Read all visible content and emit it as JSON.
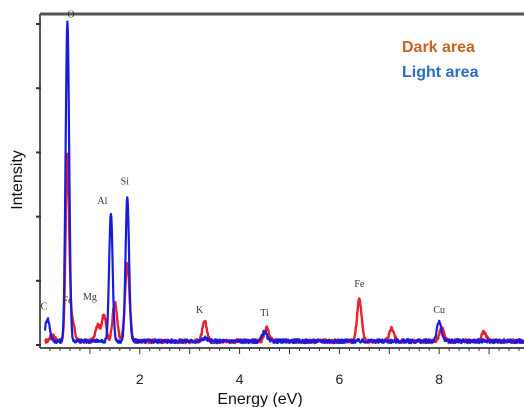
{
  "chart_data": {
    "type": "line",
    "title": "",
    "xlabel": "Energy (eV)",
    "ylabel": "Intensity",
    "xlim": [
      0,
      9.7
    ],
    "ylim": [
      0,
      100
    ],
    "x_ticks": [
      2,
      4,
      6,
      8
    ],
    "grid": false,
    "legend_position": "top-right",
    "series": [
      {
        "name": "Dark area",
        "color": "#e8222a",
        "legend_color": "#c8641e",
        "peaks": [
          {
            "x": 0.25,
            "y": 2
          },
          {
            "x": 0.55,
            "y": 58
          },
          {
            "x": 0.65,
            "y": 6
          },
          {
            "x": 1.15,
            "y": 5
          },
          {
            "x": 1.28,
            "y": 8
          },
          {
            "x": 1.5,
            "y": 12
          },
          {
            "x": 1.75,
            "y": 24
          },
          {
            "x": 3.3,
            "y": 6
          },
          {
            "x": 4.55,
            "y": 4
          },
          {
            "x": 6.4,
            "y": 13
          },
          {
            "x": 7.05,
            "y": 4
          },
          {
            "x": 8.05,
            "y": 4
          },
          {
            "x": 8.9,
            "y": 3
          }
        ]
      },
      {
        "name": "Light area",
        "color": "#1a1adc",
        "legend_color": "#2b6cc4",
        "peaks": [
          {
            "x": 0.15,
            "y": 7
          },
          {
            "x": 0.55,
            "y": 100
          },
          {
            "x": 1.42,
            "y": 40
          },
          {
            "x": 1.75,
            "y": 45
          },
          {
            "x": 3.3,
            "y": 1
          },
          {
            "x": 4.5,
            "y": 3
          },
          {
            "x": 8.0,
            "y": 6
          }
        ]
      }
    ],
    "annotations": [
      {
        "label": "O",
        "x": 0.62,
        "y": 102
      },
      {
        "label": "C",
        "x": 0.08,
        "y": 11
      },
      {
        "label": "Fe",
        "x": 0.55,
        "y": 13
      },
      {
        "label": "Mg",
        "x": 1.0,
        "y": 14
      },
      {
        "label": "Al",
        "x": 1.25,
        "y": 44
      },
      {
        "label": "Si",
        "x": 1.7,
        "y": 50
      },
      {
        "label": "K",
        "x": 3.2,
        "y": 10
      },
      {
        "label": "Ti",
        "x": 4.5,
        "y": 9
      },
      {
        "label": "Fe",
        "x": 6.4,
        "y": 18
      },
      {
        "label": "Cu",
        "x": 8.0,
        "y": 10
      }
    ]
  }
}
